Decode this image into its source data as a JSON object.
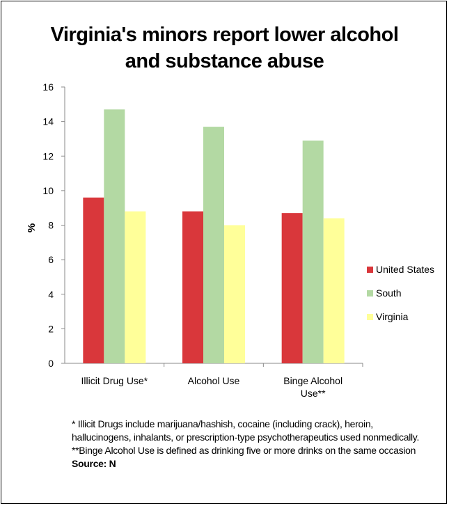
{
  "chart_data": {
    "type": "bar",
    "title": "Virginia's minors report lower alcohol\nand substance abuse",
    "ylabel": "%",
    "xlabel": "",
    "ylim": [
      0,
      16
    ],
    "yticks": [
      "0",
      "2",
      "4",
      "6",
      "8",
      "10",
      "12",
      "14",
      "16"
    ],
    "categories": [
      "Illicit Drug Use*",
      "Alcohol Use",
      "Binge Alcohol\nUse**"
    ],
    "series": [
      {
        "name": "United States",
        "color": "#d9373b",
        "values": [
          9.6,
          8.8,
          8.7
        ]
      },
      {
        "name": "South",
        "color": "#b3d9a3",
        "values": [
          14.7,
          13.7,
          12.9
        ]
      },
      {
        "name": "Virginia",
        "color": "#ffff99",
        "values": [
          8.8,
          8.0,
          8.4
        ]
      }
    ],
    "grid": false,
    "legend_position": "right"
  },
  "footnote": {
    "text": "* Illicit Drugs include marijuana/hashish, cocaine (including crack), heroin, hallucinogens, inhalants, or prescription-type psychotherapeutics used nonmedically. **Binge Alcohol Use is defined as drinking five or more drinks on the same occasion",
    "source": "Source: N"
  }
}
